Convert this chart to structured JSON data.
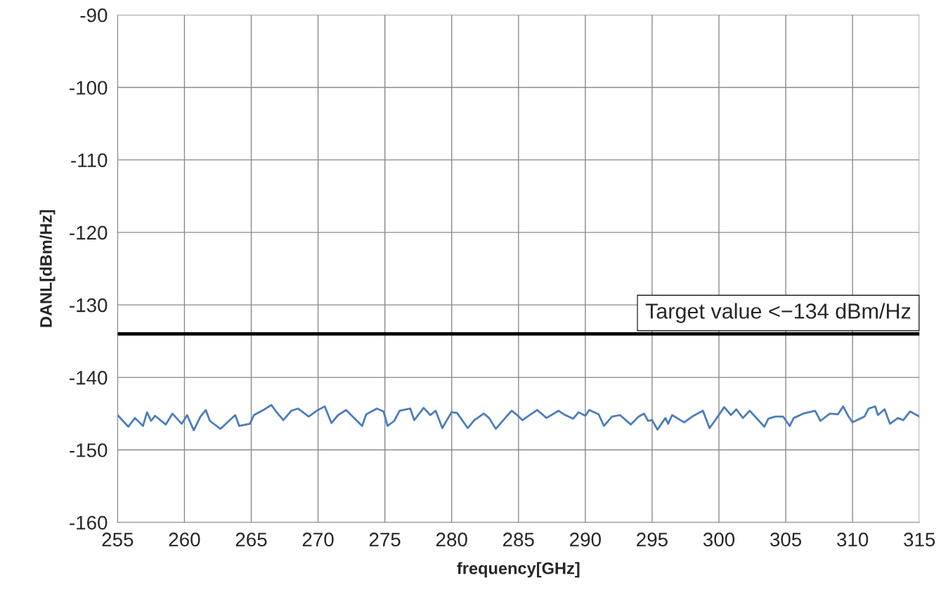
{
  "chart_data": {
    "type": "line",
    "xlabel": "frequency[GHz]",
    "ylabel": "DANL[dBm/Hz]",
    "xlim": [
      255,
      315
    ],
    "ylim": [
      -160,
      -90
    ],
    "xticks": [
      255,
      260,
      265,
      270,
      275,
      280,
      285,
      290,
      295,
      300,
      305,
      310,
      315
    ],
    "yticks": [
      -160,
      -150,
      -140,
      -130,
      -120,
      -110,
      -100,
      -90
    ],
    "grid": true,
    "marker": "none",
    "line_style": "solid",
    "ref_lines": [
      {
        "axis": "y",
        "value": -134,
        "label": "Target value <−134 dBm/Hz",
        "color": "#000000",
        "line_style": "solid"
      }
    ],
    "series": [
      {
        "color": "#4a7ebb",
        "x": [
          255.0,
          255.8,
          256.3,
          256.9,
          257.2,
          257.5,
          257.8,
          258.6,
          259.1,
          259.8,
          260.2,
          260.7,
          261.2,
          261.6,
          261.9,
          262.7,
          263.8,
          264.1,
          264.9,
          265.2,
          266.0,
          266.5,
          266.9,
          267.4,
          268.0,
          268.5,
          269.3,
          269.9,
          270.5,
          271.0,
          271.5,
          272.1,
          273.3,
          273.6,
          274.4,
          274.9,
          275.2,
          275.7,
          276.1,
          276.9,
          277.2,
          277.9,
          278.4,
          278.8,
          279.3,
          279.7,
          280.0,
          280.4,
          281.2,
          281.7,
          282.4,
          282.8,
          283.3,
          284.1,
          284.5,
          284.9,
          285.3,
          286.0,
          286.4,
          287.1,
          288.0,
          288.4,
          289.1,
          289.5,
          290.0,
          290.3,
          291.0,
          291.4,
          292.0,
          292.6,
          293.4,
          294.0,
          294.4,
          294.7,
          295.0,
          295.4,
          296.0,
          296.2,
          296.5,
          297.4,
          298.0,
          298.8,
          299.3,
          299.8,
          300.4,
          300.9,
          301.3,
          301.8,
          302.3,
          302.7,
          303.4,
          303.7,
          304.2,
          304.8,
          305.3,
          305.6,
          306.3,
          307.2,
          307.6,
          308.3,
          308.9,
          309.3,
          309.7,
          310.0,
          310.9,
          311.2,
          311.7,
          311.9,
          312.4,
          312.8,
          313.4,
          313.8,
          314.3,
          314.8,
          315.0
        ],
        "values": [
          -145.2,
          -146.8,
          -145.6,
          -146.7,
          -144.8,
          -146.0,
          -145.3,
          -146.5,
          -145.0,
          -146.4,
          -145.2,
          -147.3,
          -145.4,
          -144.5,
          -146.0,
          -147.1,
          -145.2,
          -146.7,
          -146.4,
          -145.2,
          -144.4,
          -143.8,
          -144.8,
          -145.9,
          -144.6,
          -144.3,
          -145.4,
          -144.6,
          -144.0,
          -146.3,
          -145.2,
          -144.5,
          -146.7,
          -145.1,
          -144.3,
          -144.7,
          -146.7,
          -146.0,
          -144.6,
          -144.3,
          -145.9,
          -144.2,
          -145.2,
          -144.6,
          -147.0,
          -145.7,
          -144.8,
          -144.9,
          -147.0,
          -145.9,
          -145.0,
          -145.6,
          -147.1,
          -145.4,
          -144.6,
          -145.2,
          -145.9,
          -145.0,
          -144.5,
          -145.6,
          -144.6,
          -145.1,
          -145.7,
          -144.8,
          -145.3,
          -144.5,
          -145.1,
          -146.7,
          -145.4,
          -145.2,
          -146.5,
          -145.4,
          -145.0,
          -146.0,
          -145.9,
          -147.2,
          -145.6,
          -146.4,
          -145.2,
          -146.2,
          -145.4,
          -144.6,
          -147.0,
          -145.7,
          -144.1,
          -145.2,
          -144.4,
          -145.6,
          -144.6,
          -145.4,
          -146.8,
          -145.7,
          -145.4,
          -145.4,
          -146.7,
          -145.6,
          -145.0,
          -144.6,
          -146.0,
          -145.0,
          -145.1,
          -144.0,
          -145.4,
          -146.2,
          -145.4,
          -144.3,
          -144.0,
          -145.2,
          -144.4,
          -146.4,
          -145.6,
          -145.9,
          -144.7,
          -145.2,
          -145.4
        ]
      }
    ]
  }
}
